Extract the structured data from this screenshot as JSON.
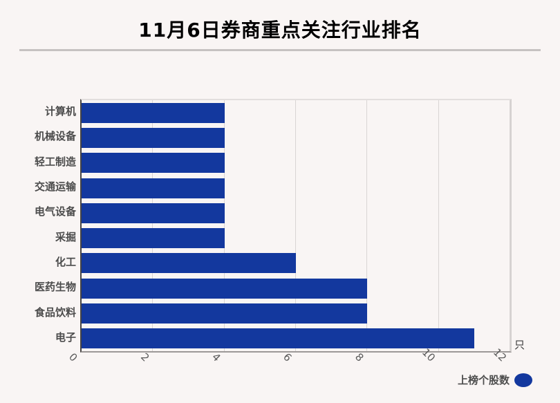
{
  "page": {
    "background": "#f9f5f4"
  },
  "header": {
    "title": "11月6日券商重点关注行业排名"
  },
  "chart_data": {
    "type": "bar",
    "orientation": "horizontal",
    "title": "11月6日券商重点关注行业排名",
    "categories": [
      "计算机",
      "机械设备",
      "轻工制造",
      "交通运输",
      "电气设备",
      "采掘",
      "化工",
      "医药生物",
      "食品饮料",
      "电子"
    ],
    "values": [
      4,
      4,
      4,
      4,
      4,
      4,
      6,
      8,
      8,
      11
    ],
    "series_name": "上榜个股数",
    "unit": "只",
    "xlabel": "",
    "ylabel": "",
    "xlim": [
      0,
      12
    ],
    "xticks": [
      0,
      2,
      4,
      6,
      8,
      10,
      12
    ],
    "xtick_rotation_deg": 45,
    "grid": true,
    "legend_position": "bottom-right",
    "bar_color": "#13389e"
  },
  "legend": {
    "label": "上榜个股数",
    "marker_color": "#13389e"
  },
  "axis": {
    "unit_label": "只"
  }
}
